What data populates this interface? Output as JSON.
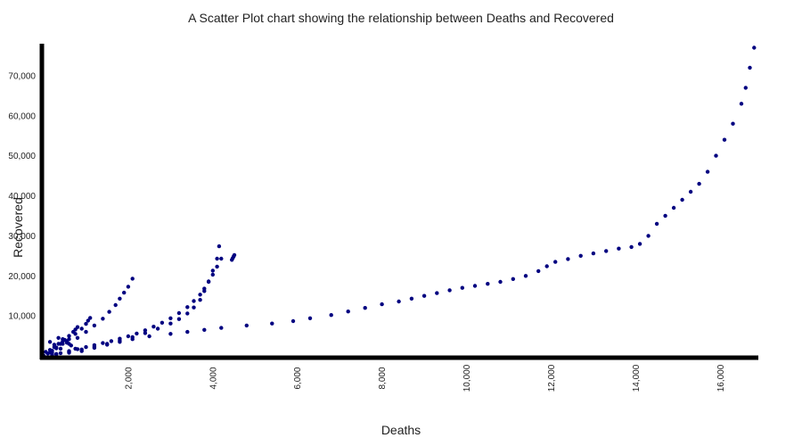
{
  "chart_data": {
    "type": "scatter",
    "title": "A Scatter Plot chart showing the relationship between Deaths and Recovered",
    "xlabel": "Deaths",
    "ylabel": "Recovered",
    "xlim": [
      0,
      16900
    ],
    "ylim": [
      0,
      78000
    ],
    "x_ticks": [
      2000,
      4000,
      6000,
      8000,
      10000,
      12000,
      14000,
      16000
    ],
    "x_tick_labels": [
      "2,000",
      "4,000",
      "6,000",
      "8,000",
      "10,000",
      "12,000",
      "14,000",
      "16,000"
    ],
    "y_ticks": [
      10000,
      20000,
      30000,
      40000,
      50000,
      60000,
      70000
    ],
    "y_tick_labels": [
      "10,000",
      "20,000",
      "30,000",
      "40,000",
      "50,000",
      "60,000",
      "70,000"
    ],
    "grid": false,
    "legend": "none",
    "point_color": "#000080",
    "series": [
      {
        "x": [
          0,
          300,
          600,
          900,
          1200,
          1500,
          1800,
          2100,
          2500,
          3000,
          3400,
          3800,
          4200,
          4800,
          5400,
          5900,
          6300,
          6800,
          7200,
          7600,
          8000,
          8400,
          8700,
          9000,
          9300,
          9600,
          9900,
          10200,
          10500,
          10800,
          11100,
          11400,
          11700,
          11900,
          12100,
          12400,
          12700,
          13000,
          13300,
          13600,
          13900,
          14100,
          14300,
          14500,
          14700,
          14900,
          15100,
          15300,
          15500,
          15700,
          15900,
          16100,
          16300,
          16500,
          16600,
          16700,
          16800
        ],
        "y": [
          0,
          400,
          800,
          1200,
          2000,
          2800,
          3500,
          4200,
          4900,
          5500,
          6000,
          6500,
          7000,
          7600,
          8100,
          8700,
          9400,
          10200,
          11100,
          12000,
          12900,
          13600,
          14300,
          15000,
          15700,
          16400,
          17000,
          17500,
          18000,
          18500,
          19200,
          20000,
          21200,
          22400,
          23500,
          24200,
          25000,
          25600,
          26200,
          26800,
          27200,
          28000,
          30000,
          33000,
          35000,
          37000,
          39000,
          41000,
          43000,
          46000,
          50000,
          54000,
          58000,
          63000,
          67000,
          72000,
          77000
        ]
      },
      {
        "x": [
          0,
          200,
          400,
          600,
          800,
          1000,
          1200,
          1400,
          1600,
          1800,
          2000,
          2200,
          2400,
          2600,
          2800,
          3000,
          3200,
          3400,
          3550,
          3700,
          3800,
          3900,
          4000,
          4100,
          4200
        ],
        "y": [
          0,
          300,
          700,
          1200,
          1700,
          2200,
          2700,
          3200,
          3700,
          4300,
          4900,
          5600,
          6400,
          7300,
          8300,
          9400,
          10700,
          12200,
          13700,
          15300,
          16800,
          18500,
          20300,
          22300,
          24300
        ]
      },
      {
        "x": [
          0,
          300,
          600,
          900,
          1200,
          1500,
          1800,
          2100,
          2400,
          2700,
          3000,
          3200,
          3400,
          3550,
          3700,
          3800,
          3900,
          4000,
          4100,
          4150
        ],
        "y": [
          0,
          500,
          1000,
          1600,
          2300,
          3000,
          3800,
          4700,
          5700,
          6800,
          8100,
          9200,
          10600,
          12100,
          14000,
          16200,
          18600,
          21300,
          24300,
          27400
        ]
      },
      {
        "x": [
          4450,
          4470,
          4490,
          4510
        ],
        "y": [
          24000,
          24400,
          24800,
          25200
        ]
      },
      {
        "x": [
          0,
          200,
          400,
          600,
          800,
          1000,
          1200,
          1400,
          1550,
          1700,
          1800,
          1900,
          2000,
          2100
        ],
        "y": [
          0,
          800,
          1800,
          3000,
          4500,
          6000,
          7600,
          9300,
          11000,
          12700,
          14300,
          15800,
          17300,
          19300
        ]
      },
      {
        "x": [
          0,
          150,
          300,
          450,
          600,
          750,
          900,
          1000,
          1050,
          1100
        ],
        "y": [
          0,
          900,
          1900,
          3000,
          4200,
          5500,
          6800,
          8000,
          8800,
          9500
        ]
      },
      {
        "x": [
          0,
          100,
          200,
          300,
          400,
          500,
          600,
          700,
          750,
          800
        ],
        "y": [
          0,
          600,
          1300,
          2100,
          3000,
          4000,
          5000,
          6000,
          6600,
          7200
        ]
      },
      {
        "x": [
          50,
          150,
          250,
          350,
          450,
          550,
          650,
          750,
          350,
          450,
          550,
          150,
          250
        ],
        "y": [
          1000,
          1500,
          2200,
          3000,
          3600,
          3300,
          2600,
          1800,
          4500,
          4200,
          3700,
          3500,
          2800
        ]
      }
    ]
  }
}
